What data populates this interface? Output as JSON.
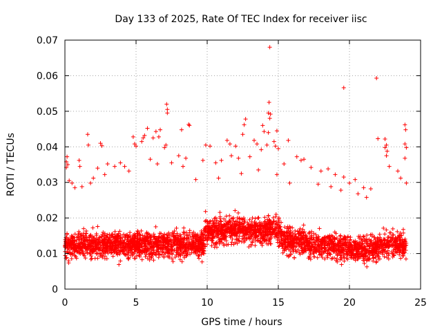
{
  "chart_data": {
    "type": "scatter",
    "title": "Day 133 of 2025, Rate Of TEC Index for receiver iisc",
    "xlabel": "GPS time / hours",
    "ylabel": "ROTI / TECUs",
    "xlim": [
      0,
      25
    ],
    "ylim": [
      0,
      0.07
    ],
    "xticks": [
      "0",
      "5",
      "10",
      "15",
      "20",
      "25"
    ],
    "xtick_values": [
      0,
      5,
      10,
      15,
      20,
      25
    ],
    "yticks": [
      "0",
      "0.01",
      "0.02",
      "0.03",
      "0.04",
      "0.05",
      "0.06",
      "0.07"
    ],
    "ytick_values": [
      0,
      0.01,
      0.02,
      0.03,
      0.04,
      0.05,
      0.06,
      0.07
    ],
    "grid": true,
    "marker": "plus",
    "color": "#ff0000",
    "series": [
      {
        "points": [
          [
            14.4,
            0.068
          ],
          [
            21.9,
            0.0593
          ],
          [
            19.6,
            0.0566
          ],
          [
            7.15,
            0.052
          ],
          [
            7.2,
            0.0505
          ],
          [
            7.2,
            0.0495
          ],
          [
            14.3,
            0.0495
          ],
          [
            14.35,
            0.0525
          ],
          [
            14.45,
            0.0492
          ],
          [
            14.4,
            0.048
          ],
          [
            12.7,
            0.0478
          ],
          [
            12.6,
            0.0462
          ],
          [
            8.7,
            0.0463
          ],
          [
            8.75,
            0.046
          ],
          [
            6.7,
            0.0448
          ],
          [
            6.4,
            0.0443
          ],
          [
            5.8,
            0.0452
          ],
          [
            8.2,
            0.0448
          ],
          [
            14.0,
            0.0443
          ],
          [
            12.5,
            0.0435
          ],
          [
            13.9,
            0.046
          ],
          [
            14.3,
            0.044
          ],
          [
            14.9,
            0.0445
          ],
          [
            1.6,
            0.0435
          ],
          [
            1.65,
            0.0405
          ],
          [
            2.5,
            0.041
          ],
          [
            2.6,
            0.0403
          ],
          [
            4.8,
            0.0428
          ],
          [
            4.9,
            0.0408
          ],
          [
            5.0,
            0.0402
          ],
          [
            5.4,
            0.0415
          ],
          [
            5.5,
            0.0425
          ],
          [
            5.6,
            0.0432
          ],
          [
            6.2,
            0.0425
          ],
          [
            6.6,
            0.0428
          ],
          [
            7.0,
            0.0398
          ],
          [
            7.1,
            0.0405
          ],
          [
            9.9,
            0.0405
          ],
          [
            10.2,
            0.0402
          ],
          [
            11.4,
            0.0418
          ],
          [
            11.6,
            0.0408
          ],
          [
            12.0,
            0.0402
          ],
          [
            13.3,
            0.0418
          ],
          [
            13.5,
            0.0408
          ],
          [
            13.8,
            0.0392
          ],
          [
            14.2,
            0.0405
          ],
          [
            14.7,
            0.0415
          ],
          [
            14.8,
            0.0402
          ],
          [
            15.0,
            0.0395
          ],
          [
            15.7,
            0.0418
          ],
          [
            22.5,
            0.0422
          ],
          [
            22.5,
            0.0398
          ],
          [
            22.6,
            0.0405
          ],
          [
            22.65,
            0.0388
          ],
          [
            22.6,
            0.0375
          ],
          [
            23.9,
            0.0462
          ],
          [
            23.95,
            0.0448
          ],
          [
            23.9,
            0.0408
          ],
          [
            24.0,
            0.0398
          ],
          [
            23.9,
            0.0368
          ],
          [
            22.0,
            0.0423
          ],
          [
            0.1,
            0.0358
          ],
          [
            0.15,
            0.0372
          ],
          [
            0.2,
            0.035
          ],
          [
            0.1,
            0.0342
          ],
          [
            1.0,
            0.0362
          ],
          [
            1.05,
            0.0345
          ],
          [
            2.3,
            0.034
          ],
          [
            3.0,
            0.0352
          ],
          [
            3.5,
            0.0345
          ],
          [
            3.9,
            0.0355
          ],
          [
            4.2,
            0.0345
          ],
          [
            6.0,
            0.0365
          ],
          [
            6.5,
            0.0352
          ],
          [
            7.5,
            0.0355
          ],
          [
            8.0,
            0.0375
          ],
          [
            8.5,
            0.0368
          ],
          [
            9.7,
            0.0362
          ],
          [
            10.6,
            0.0355
          ],
          [
            11.0,
            0.0362
          ],
          [
            11.7,
            0.0375
          ],
          [
            12.2,
            0.0368
          ],
          [
            13.0,
            0.0372
          ],
          [
            15.4,
            0.0352
          ],
          [
            16.3,
            0.0372
          ],
          [
            16.8,
            0.0365
          ],
          [
            17.3,
            0.0342
          ],
          [
            18.0,
            0.0332
          ],
          [
            18.5,
            0.0338
          ],
          [
            19.0,
            0.0322
          ],
          [
            19.6,
            0.0315
          ],
          [
            20.0,
            0.0298
          ],
          [
            20.4,
            0.0308
          ],
          [
            21.0,
            0.0285
          ],
          [
            21.5,
            0.0282
          ],
          [
            22.8,
            0.0345
          ],
          [
            23.4,
            0.0332
          ],
          [
            23.6,
            0.0312
          ],
          [
            0.3,
            0.0305
          ],
          [
            0.5,
            0.0298
          ],
          [
            0.7,
            0.0285
          ],
          [
            1.8,
            0.0298
          ],
          [
            1.2,
            0.0288
          ],
          [
            24.0,
            0.0298
          ],
          [
            16.6,
            0.0362
          ],
          [
            17.8,
            0.0295
          ],
          [
            18.7,
            0.0288
          ],
          [
            19.4,
            0.0278
          ],
          [
            20.6,
            0.0268
          ],
          [
            21.2,
            0.0258
          ],
          [
            4.5,
            0.0332
          ],
          [
            8.3,
            0.0345
          ],
          [
            9.2,
            0.0308
          ],
          [
            10.8,
            0.0312
          ],
          [
            12.4,
            0.0325
          ],
          [
            13.6,
            0.0335
          ],
          [
            14.9,
            0.0322
          ],
          [
            15.8,
            0.0298
          ],
          [
            2.0,
            0.0312
          ],
          [
            2.8,
            0.0322
          ]
        ]
      }
    ]
  }
}
